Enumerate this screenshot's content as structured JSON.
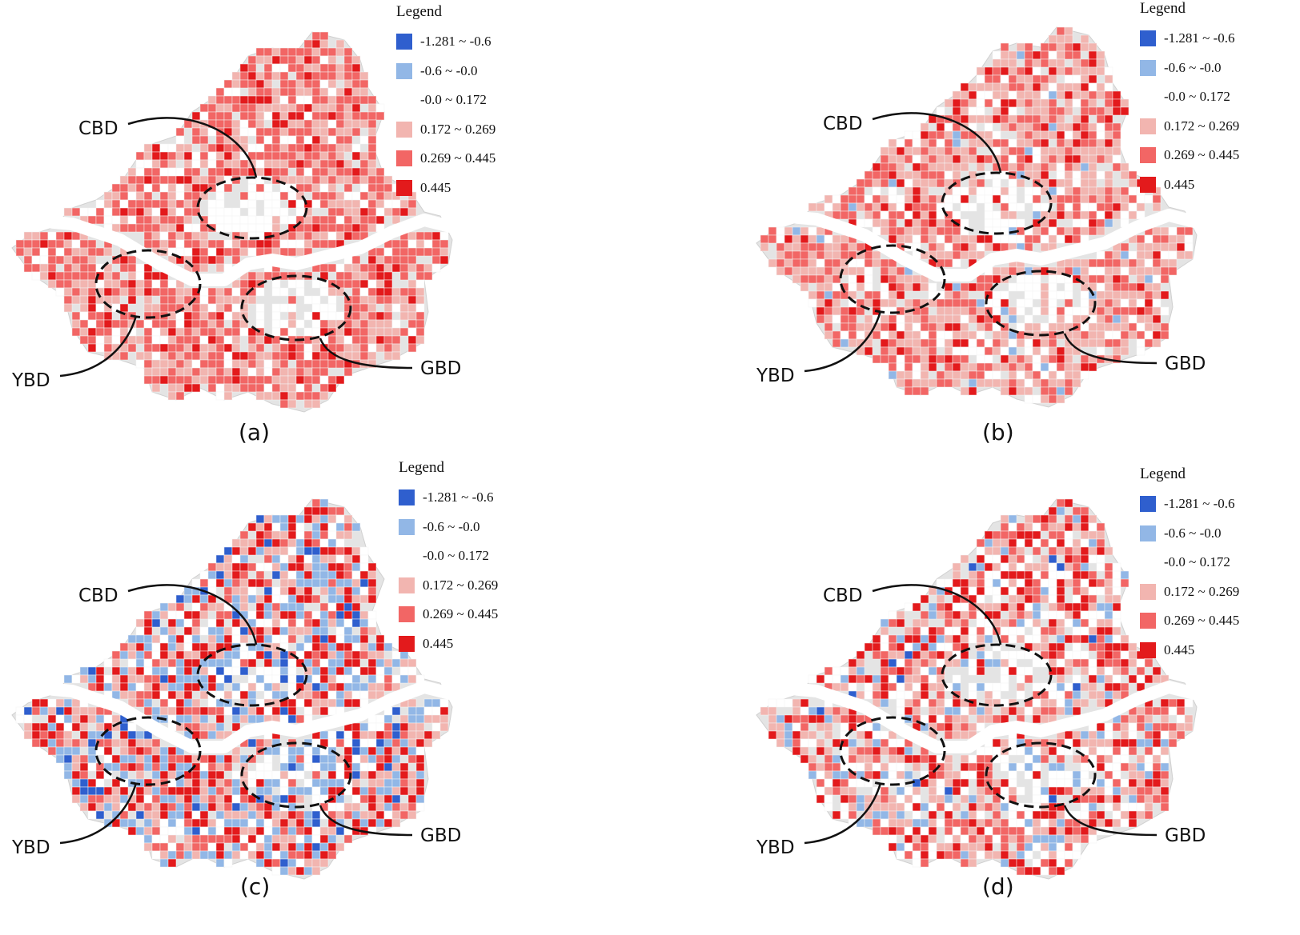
{
  "legend": {
    "title": "Legend",
    "classes": [
      {
        "label": "-1.281 ~ -0.6",
        "color": "#2f5fce"
      },
      {
        "label": "-0.6 ~ -0.0",
        "color": "#92b7e6"
      },
      {
        "label": "-0.0 ~ 0.172",
        "color": ""
      },
      {
        "label": "0.172 ~ 0.269",
        "color": "#f2b5b0"
      },
      {
        "label": "0.269 ~ 0.445",
        "color": "#f26665"
      },
      {
        "label": "0.445",
        "color": "#e31a1c"
      }
    ]
  },
  "districts": {
    "cbd": "CBD",
    "ybd": "YBD",
    "gbd": "GBD"
  },
  "panels": [
    {
      "id": "a",
      "caption": "(a)",
      "pattern": {
        "red": 0.1,
        "mid": 0.42,
        "light": 0.28,
        "blue": 0.0,
        "lightblue": 0.0
      }
    },
    {
      "id": "b",
      "caption": "(b)",
      "pattern": {
        "red": 0.08,
        "mid": 0.28,
        "light": 0.38,
        "blue": 0.0,
        "lightblue": 0.03
      }
    },
    {
      "id": "c",
      "caption": "(c)",
      "pattern": {
        "red": 0.2,
        "mid": 0.12,
        "light": 0.2,
        "blue": 0.05,
        "lightblue": 0.2
      }
    },
    {
      "id": "d",
      "caption": "(d)",
      "pattern": {
        "red": 0.18,
        "mid": 0.16,
        "light": 0.24,
        "blue": 0.01,
        "lightblue": 0.09
      }
    }
  ]
}
